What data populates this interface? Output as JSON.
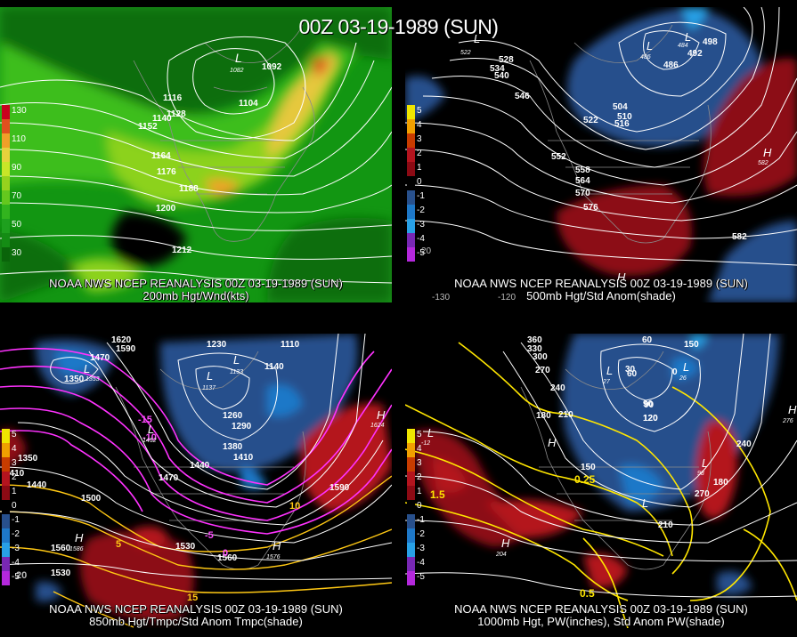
{
  "title": "00Z 03-19-1989 (SUN)",
  "panels": [
    {
      "caption_line1": "NOAA NWS NCEP REANALYSIS 00Z 03-19-1989 (SUN)",
      "caption_line2": "200mb Hgt/Wnd(kts)",
      "legend": [
        {
          "label": "130",
          "color": "#c8001e"
        },
        {
          "label": "",
          "color": "#e0501e"
        },
        {
          "label": "110",
          "color": "#f0a028"
        },
        {
          "label": "",
          "color": "#e6d23c"
        },
        {
          "label": "90",
          "color": "#c8e628"
        },
        {
          "label": "",
          "color": "#96d21e"
        },
        {
          "label": "70",
          "color": "#64c81e"
        },
        {
          "label": "",
          "color": "#32b41e"
        },
        {
          "label": "50",
          "color": "#1ea01e"
        },
        {
          "label": "",
          "color": "#148c14"
        },
        {
          "label": "30",
          "color": "#0a640a"
        }
      ],
      "contour_labels": [
        "1092",
        "1104",
        "1116",
        "1128",
        "1140",
        "1152",
        "1164",
        "1176",
        "1188",
        "1200",
        "1212"
      ],
      "low_labels": [
        {
          "letter": "L",
          "value": "1082"
        }
      ]
    },
    {
      "caption_line1": "NOAA NWS NCEP REANALYSIS 00Z 03-19-1989 (SUN)",
      "caption_line2": "500mb Hgt/Std Anom(shade)",
      "legend": [
        {
          "label": "5",
          "color": "#f0e600"
        },
        {
          "label": "4",
          "color": "#f0a000"
        },
        {
          "label": "3",
          "color": "#c83c00"
        },
        {
          "label": "2",
          "color": "#b4141e"
        },
        {
          "label": "1",
          "color": "#8c0a14"
        },
        {
          "label": "0",
          "color": "#000000"
        },
        {
          "label": "-1",
          "color": "#28508c"
        },
        {
          "label": "-2",
          "color": "#1e78c8"
        },
        {
          "label": "-3",
          "color": "#28a0e6"
        },
        {
          "label": "-4",
          "color": "#7828b4"
        },
        {
          "label": "-5",
          "color": "#b428dc"
        }
      ],
      "contour_labels": [
        "486",
        "492",
        "498",
        "504",
        "510",
        "516",
        "522",
        "528",
        "534",
        "540",
        "546",
        "552",
        "558",
        "564",
        "570",
        "576",
        "582"
      ],
      "low_labels": [
        {
          "letter": "L",
          "value": "484"
        },
        {
          "letter": "L",
          "value": "486"
        },
        {
          "letter": "L",
          "value": "522"
        }
      ],
      "high_labels": [
        {
          "letter": "H",
          "value": "582"
        },
        {
          "letter": "H",
          "value": ""
        }
      ],
      "edge_labels": [
        "20",
        "-120",
        "-130"
      ]
    },
    {
      "caption_line1": "NOAA NWS NCEP REANALYSIS 00Z 03-19-1989 (SUN)",
      "caption_line2": "850mb Hgt/Tmpc/Std Anom Tmpc(shade)",
      "legend": [
        {
          "label": "5",
          "color": "#f0e600"
        },
        {
          "label": "4",
          "color": "#f0a000"
        },
        {
          "label": "3",
          "color": "#c83c00"
        },
        {
          "label": "2",
          "color": "#b4141e"
        },
        {
          "label": "1",
          "color": "#8c0a14"
        },
        {
          "label": "0",
          "color": "#000000"
        },
        {
          "label": "-1",
          "color": "#28508c"
        },
        {
          "label": "-2",
          "color": "#1e78c8"
        },
        {
          "label": "-3",
          "color": "#28a0e6"
        },
        {
          "label": "-4",
          "color": "#7828b4"
        },
        {
          "label": "-5",
          "color": "#b428dc"
        }
      ],
      "contour_labels": [
        "1620",
        "1590",
        "1470",
        "1350",
        "1230",
        "1110",
        "1140",
        "1260",
        "1290",
        "1380",
        "1410",
        "1440",
        "1470",
        "1500",
        "1530",
        "1560",
        "1590",
        "1350",
        "1410",
        "1440",
        "1530",
        "1560"
      ],
      "temp_labels": [
        "-15",
        "-10",
        "-5",
        "0",
        "5",
        "10",
        "15",
        "20"
      ],
      "low_labels": [
        {
          "letter": "L",
          "value": "1353"
        },
        {
          "letter": "L",
          "value": "1133"
        },
        {
          "letter": "L",
          "value": "1137"
        },
        {
          "letter": "L",
          "value": "1452"
        }
      ],
      "high_labels": [
        {
          "letter": "H",
          "value": "1624"
        },
        {
          "letter": "H",
          "value": "1576"
        },
        {
          "letter": "H",
          "value": "1586"
        }
      ]
    },
    {
      "caption_line1": "NOAA NWS NCEP REANALYSIS 00Z 03-19-1989 (SUN)",
      "caption_line2": "1000mb Hgt, PW(inches), Std Anom PW(shade)",
      "legend": [
        {
          "label": "5",
          "color": "#f0e600"
        },
        {
          "label": "4",
          "color": "#f0a000"
        },
        {
          "label": "3",
          "color": "#c83c00"
        },
        {
          "label": "2",
          "color": "#b4141e"
        },
        {
          "label": "1",
          "color": "#8c0a14"
        },
        {
          "label": "0",
          "color": "#000000"
        },
        {
          "label": "-1",
          "color": "#28508c"
        },
        {
          "label": "-2",
          "color": "#1e78c8"
        },
        {
          "label": "-3",
          "color": "#28a0e6"
        },
        {
          "label": "-4",
          "color": "#7828b4"
        },
        {
          "label": "-5",
          "color": "#b428dc"
        }
      ],
      "contour_labels": [
        "360",
        "330",
        "300",
        "270",
        "240",
        "210",
        "180",
        "150",
        "120",
        "90",
        "60",
        "30",
        "0",
        "60",
        "150",
        "180",
        "210",
        "240",
        "270",
        "120",
        "90"
      ],
      "pw_labels": [
        "0.25",
        "0.5",
        "1.5"
      ],
      "low_labels": [
        {
          "letter": "L",
          "value": "-12"
        },
        {
          "letter": "L",
          "value": "27"
        },
        {
          "letter": "L",
          "value": "26"
        },
        {
          "letter": "L",
          "value": "98"
        },
        {
          "letter": "L",
          "value": ""
        }
      ],
      "high_labels": [
        {
          "letter": "H",
          "value": "204"
        },
        {
          "letter": "H",
          "value": "276"
        },
        {
          "letter": "H",
          "value": ""
        }
      ]
    }
  ],
  "colors": {
    "contour": "#ffffff",
    "map_outline": "#8c8c8c",
    "temp_contour": "#ff32ff",
    "pw_contour": "#ffe600"
  }
}
